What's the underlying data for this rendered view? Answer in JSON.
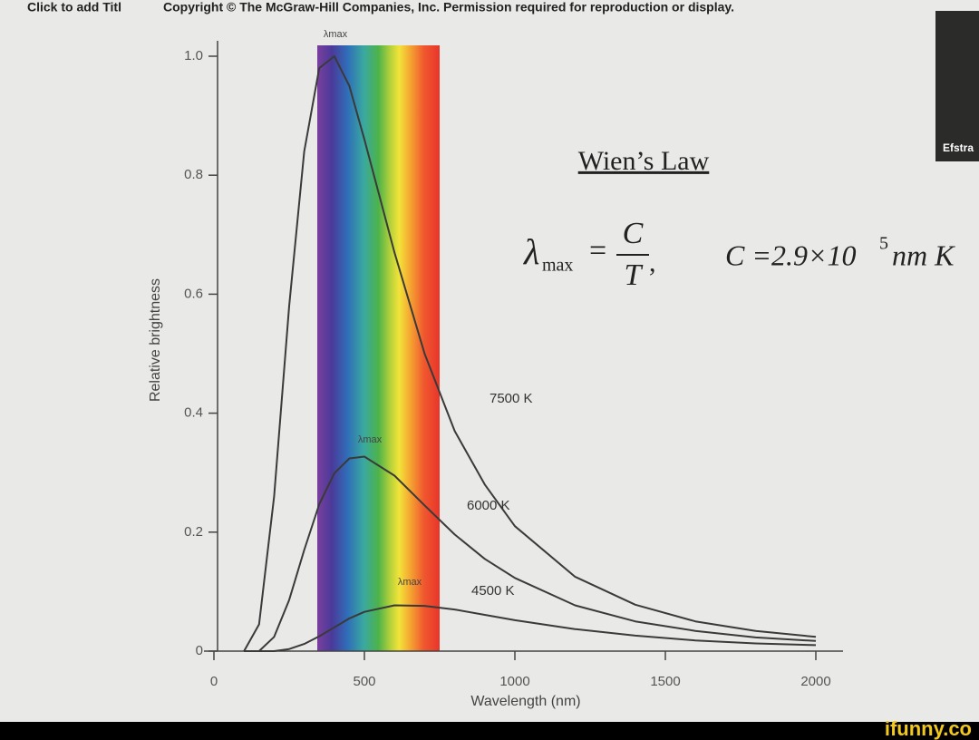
{
  "header": {
    "placeholder": "Click to add Titl",
    "copyright": "Copyright © The McGraw-Hill Companies, Inc. Permission required for reproduction or display."
  },
  "chart_data": {
    "type": "line",
    "xlabel": "Wavelength (nm)",
    "ylabel": "Relative brightness",
    "x": [
      100,
      150,
      200,
      250,
      300,
      350,
      400,
      450,
      500,
      600,
      700,
      800,
      900,
      1000,
      1200,
      1400,
      1600,
      1800,
      2000
    ],
    "series": [
      {
        "name": "7500 K",
        "color": "#3a3a3a",
        "values": [
          0,
          0.045,
          0.26,
          0.58,
          0.84,
          0.98,
          1.0,
          0.95,
          0.86,
          0.67,
          0.5,
          0.37,
          0.28,
          0.21,
          0.125,
          0.078,
          0.05,
          0.034,
          0.024
        ]
      },
      {
        "name": "6000 K",
        "color": "#3a3a3a",
        "values": [
          0,
          0,
          0.024,
          0.086,
          0.17,
          0.247,
          0.299,
          0.324,
          0.327,
          0.295,
          0.245,
          0.196,
          0.155,
          0.123,
          0.077,
          0.05,
          0.034,
          0.023,
          0.017
        ]
      },
      {
        "name": "4500 K",
        "color": "#3a3a3a",
        "values": [
          0,
          0,
          0,
          0.0035,
          0.012,
          0.025,
          0.04,
          0.055,
          0.066,
          0.077,
          0.076,
          0.07,
          0.061,
          0.052,
          0.037,
          0.026,
          0.018,
          0.013,
          0.01
        ]
      }
    ],
    "xlim": [
      0,
      2000
    ],
    "xticks": [
      0,
      500,
      1000,
      1500,
      2000
    ],
    "ylim": [
      0,
      1
    ],
    "yticks": [
      0,
      0.2,
      0.4,
      0.6,
      0.8,
      {
        "value": 1,
        "label": "1.0"
      }
    ],
    "peak_label": "λmax"
  },
  "formula": {
    "title": "Wien’s Law",
    "lambda": "λ",
    "sub": "max",
    "equals": "=",
    "numerator": "C",
    "denominator": "T",
    "comma": ",",
    "constant": "C =2.9×10",
    "exponent": "5",
    "unit": "nm K"
  },
  "webcam": {
    "name": "Efstra"
  },
  "watermark": "ifunny.co"
}
